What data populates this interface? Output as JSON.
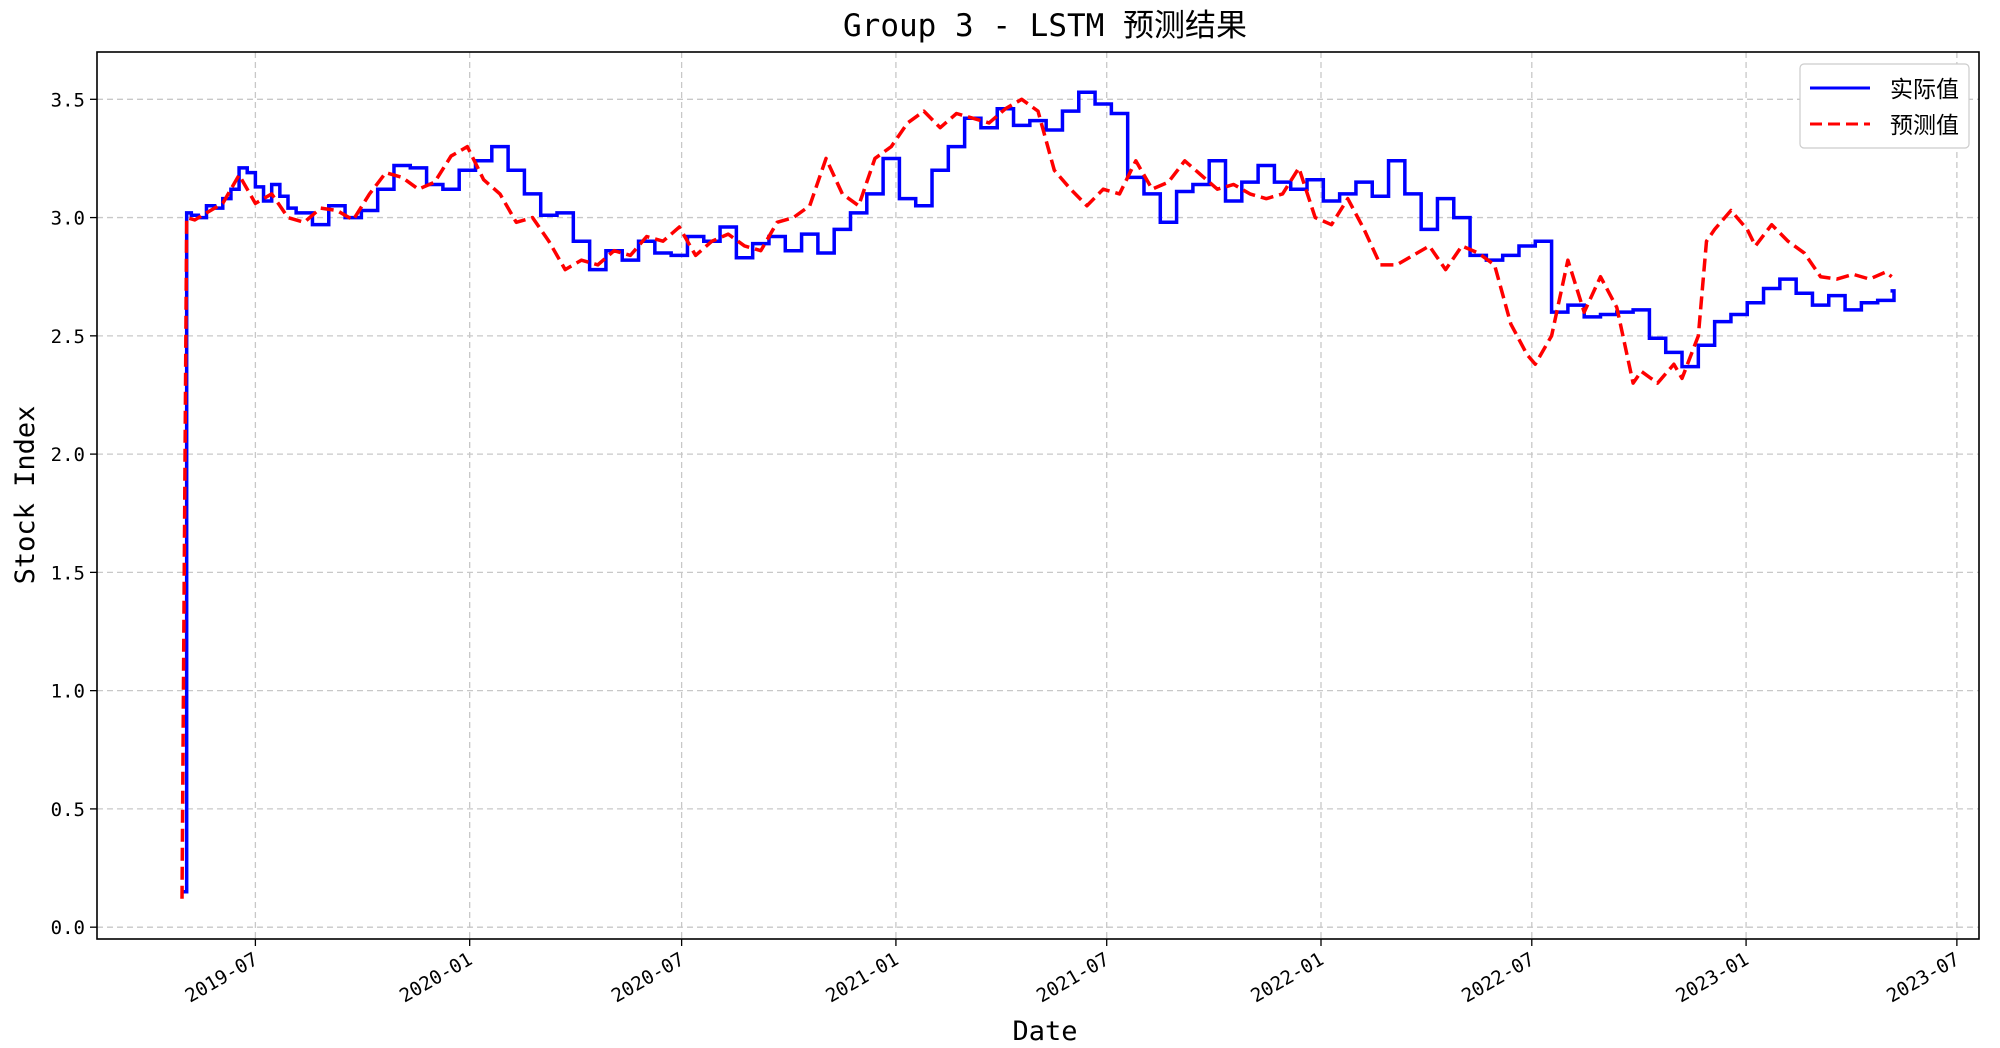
{
  "chart_data": {
    "type": "line",
    "title": "Group 3 - LSTM 预测结果",
    "xlabel": "Date",
    "ylabel": "Stock Index",
    "xlim": [
      "2019-02-15",
      "2023-07-20"
    ],
    "ylim": [
      -0.05,
      3.7
    ],
    "grid": true,
    "legend_position": "top-right",
    "x_ticks": [
      "2019-07-01",
      "2020-01-01",
      "2020-07-01",
      "2021-01-01",
      "2021-07-01",
      "2022-01-01",
      "2022-07-01",
      "2023-01-01",
      "2023-07-01"
    ],
    "x_tick_labels": [
      "2019-07",
      "2020-01",
      "2020-07",
      "2021-01",
      "2021-07",
      "2022-01",
      "2022-07",
      "2023-01",
      "2023-07"
    ],
    "y_ticks": [
      0.0,
      0.5,
      1.0,
      1.5,
      2.0,
      2.5,
      3.0,
      3.5
    ],
    "y_tick_labels": [
      "0.0",
      "0.5",
      "1.0",
      "1.5",
      "2.0",
      "2.5",
      "3.0",
      "3.5"
    ],
    "series": [
      {
        "name": "实际值",
        "color": "#0000ff",
        "style": "solid-step",
        "x": [
          "2019-04-30",
          "2019-05-03",
          "2019-05-07",
          "2019-05-13",
          "2019-05-20",
          "2019-05-27",
          "2019-06-03",
          "2019-06-10",
          "2019-06-17",
          "2019-06-24",
          "2019-07-01",
          "2019-07-08",
          "2019-07-15",
          "2019-07-22",
          "2019-07-29",
          "2019-08-05",
          "2019-08-19",
          "2019-09-02",
          "2019-09-16",
          "2019-09-30",
          "2019-10-14",
          "2019-10-28",
          "2019-11-11",
          "2019-11-25",
          "2019-12-09",
          "2019-12-23",
          "2020-01-06",
          "2020-01-20",
          "2020-02-03",
          "2020-02-17",
          "2020-03-02",
          "2020-03-16",
          "2020-03-30",
          "2020-04-13",
          "2020-04-27",
          "2020-05-11",
          "2020-05-25",
          "2020-06-08",
          "2020-06-22",
          "2020-07-06",
          "2020-07-20",
          "2020-08-03",
          "2020-08-17",
          "2020-08-31",
          "2020-09-14",
          "2020-09-28",
          "2020-10-12",
          "2020-10-26",
          "2020-11-09",
          "2020-11-23",
          "2020-12-07",
          "2020-12-21",
          "2021-01-04",
          "2021-01-18",
          "2021-02-01",
          "2021-02-15",
          "2021-03-01",
          "2021-03-15",
          "2021-03-29",
          "2021-04-12",
          "2021-04-26",
          "2021-05-10",
          "2021-05-24",
          "2021-06-07",
          "2021-06-21",
          "2021-07-05",
          "2021-07-19",
          "2021-08-02",
          "2021-08-16",
          "2021-08-30",
          "2021-09-13",
          "2021-09-27",
          "2021-10-11",
          "2021-10-25",
          "2021-11-08",
          "2021-11-22",
          "2021-12-06",
          "2021-12-20",
          "2022-01-03",
          "2022-01-17",
          "2022-01-31",
          "2022-02-14",
          "2022-02-28",
          "2022-03-14",
          "2022-03-28",
          "2022-04-11",
          "2022-04-25",
          "2022-05-09",
          "2022-05-23",
          "2022-06-06",
          "2022-06-20",
          "2022-07-04",
          "2022-07-18",
          "2022-08-01",
          "2022-08-15",
          "2022-08-29",
          "2022-09-12",
          "2022-09-26",
          "2022-10-10",
          "2022-10-24",
          "2022-11-07",
          "2022-11-21",
          "2022-12-05",
          "2022-12-19",
          "2023-01-02",
          "2023-01-16",
          "2023-01-30",
          "2023-02-13",
          "2023-02-27",
          "2023-03-13",
          "2023-03-27",
          "2023-04-10",
          "2023-04-24",
          "2023-05-08"
        ],
        "values": [
          0.15,
          3.02,
          3.01,
          3.0,
          3.05,
          3.04,
          3.08,
          3.12,
          3.21,
          3.19,
          3.13,
          3.07,
          3.14,
          3.09,
          3.04,
          3.02,
          2.97,
          3.05,
          3.0,
          3.03,
          3.12,
          3.22,
          3.21,
          3.14,
          3.12,
          3.2,
          3.24,
          3.3,
          3.2,
          3.1,
          3.01,
          3.02,
          2.9,
          2.78,
          2.86,
          2.82,
          2.9,
          2.85,
          2.84,
          2.92,
          2.9,
          2.96,
          2.83,
          2.89,
          2.92,
          2.86,
          2.93,
          2.85,
          2.95,
          3.02,
          3.1,
          3.25,
          3.08,
          3.05,
          3.2,
          3.3,
          3.42,
          3.38,
          3.46,
          3.39,
          3.41,
          3.37,
          3.45,
          3.53,
          3.48,
          3.44,
          3.17,
          3.1,
          2.98,
          3.11,
          3.14,
          3.24,
          3.07,
          3.15,
          3.22,
          3.15,
          3.12,
          3.16,
          3.07,
          3.1,
          3.15,
          3.09,
          3.24,
          3.1,
          2.95,
          3.08,
          3.0,
          2.84,
          2.82,
          2.84,
          2.88,
          2.9,
          2.6,
          2.63,
          2.58,
          2.59,
          2.6,
          2.61,
          2.49,
          2.43,
          2.37,
          2.46,
          2.56,
          2.59,
          2.64,
          2.7,
          2.74,
          2.68,
          2.63,
          2.67,
          2.61,
          2.64,
          2.65,
          2.69
        ],
        "x_end": "2023-05-05"
      },
      {
        "name": "预测值",
        "color": "#ff0000",
        "style": "dashed",
        "x": [
          "2019-04-29",
          "2019-05-03",
          "2019-05-10",
          "2019-05-20",
          "2019-06-03",
          "2019-06-17",
          "2019-07-01",
          "2019-07-15",
          "2019-07-29",
          "2019-08-12",
          "2019-08-26",
          "2019-09-09",
          "2019-09-23",
          "2019-10-07",
          "2019-10-21",
          "2019-11-04",
          "2019-11-18",
          "2019-12-02",
          "2019-12-16",
          "2019-12-30",
          "2020-01-13",
          "2020-01-27",
          "2020-02-10",
          "2020-02-24",
          "2020-03-09",
          "2020-03-23",
          "2020-04-06",
          "2020-04-20",
          "2020-05-04",
          "2020-05-18",
          "2020-06-01",
          "2020-06-15",
          "2020-06-29",
          "2020-07-13",
          "2020-07-27",
          "2020-08-10",
          "2020-08-24",
          "2020-09-07",
          "2020-09-21",
          "2020-10-05",
          "2020-10-19",
          "2020-11-02",
          "2020-11-16",
          "2020-11-30",
          "2020-12-14",
          "2020-12-28",
          "2021-01-11",
          "2021-01-25",
          "2021-02-08",
          "2021-02-22",
          "2021-03-08",
          "2021-03-22",
          "2021-04-05",
          "2021-04-19",
          "2021-05-03",
          "2021-05-17",
          "2021-05-31",
          "2021-06-14",
          "2021-06-28",
          "2021-07-12",
          "2021-07-26",
          "2021-08-09",
          "2021-08-23",
          "2021-09-06",
          "2021-09-20",
          "2021-10-04",
          "2021-10-18",
          "2021-11-01",
          "2021-11-15",
          "2021-11-29",
          "2021-12-13",
          "2021-12-27",
          "2022-01-10",
          "2022-01-24",
          "2022-02-07",
          "2022-02-21",
          "2022-03-07",
          "2022-03-21",
          "2022-04-04",
          "2022-04-18",
          "2022-05-02",
          "2022-05-16",
          "2022-05-30",
          "2022-06-13",
          "2022-06-27",
          "2022-07-04",
          "2022-07-18",
          "2022-08-01",
          "2022-08-15",
          "2022-08-29",
          "2022-09-12",
          "2022-09-26",
          "2022-10-03",
          "2022-10-17",
          "2022-10-31",
          "2022-11-07",
          "2022-11-21",
          "2022-11-28",
          "2022-12-05",
          "2022-12-19",
          "2023-01-02",
          "2023-01-09",
          "2023-01-23",
          "2023-02-06",
          "2023-02-20",
          "2023-03-06",
          "2023-03-20",
          "2023-04-03",
          "2023-04-17",
          "2023-05-01",
          "2023-05-06"
        ],
        "values": [
          0.12,
          3.0,
          2.99,
          3.02,
          3.06,
          3.18,
          3.06,
          3.1,
          3.0,
          2.98,
          3.04,
          3.03,
          2.99,
          3.1,
          3.19,
          3.17,
          3.12,
          3.15,
          3.26,
          3.3,
          3.16,
          3.1,
          2.98,
          3.0,
          2.9,
          2.78,
          2.82,
          2.8,
          2.86,
          2.84,
          2.92,
          2.9,
          2.96,
          2.84,
          2.9,
          2.93,
          2.88,
          2.86,
          2.98,
          3.0,
          3.05,
          3.25,
          3.1,
          3.05,
          3.25,
          3.3,
          3.4,
          3.45,
          3.38,
          3.44,
          3.42,
          3.4,
          3.46,
          3.5,
          3.45,
          3.2,
          3.12,
          3.05,
          3.12,
          3.1,
          3.24,
          3.12,
          3.15,
          3.24,
          3.18,
          3.12,
          3.14,
          3.1,
          3.08,
          3.1,
          3.21,
          3.0,
          2.97,
          3.08,
          2.95,
          2.8,
          2.8,
          2.84,
          2.88,
          2.78,
          2.88,
          2.85,
          2.8,
          2.55,
          2.42,
          2.38,
          2.5,
          2.82,
          2.6,
          2.75,
          2.62,
          2.3,
          2.35,
          2.3,
          2.38,
          2.32,
          2.5,
          2.9,
          2.95,
          3.03,
          2.95,
          2.88,
          2.97,
          2.9,
          2.85,
          2.75,
          2.74,
          2.76,
          2.74,
          2.77,
          2.75
        ],
        "note_ignore": ""
      }
    ]
  }
}
